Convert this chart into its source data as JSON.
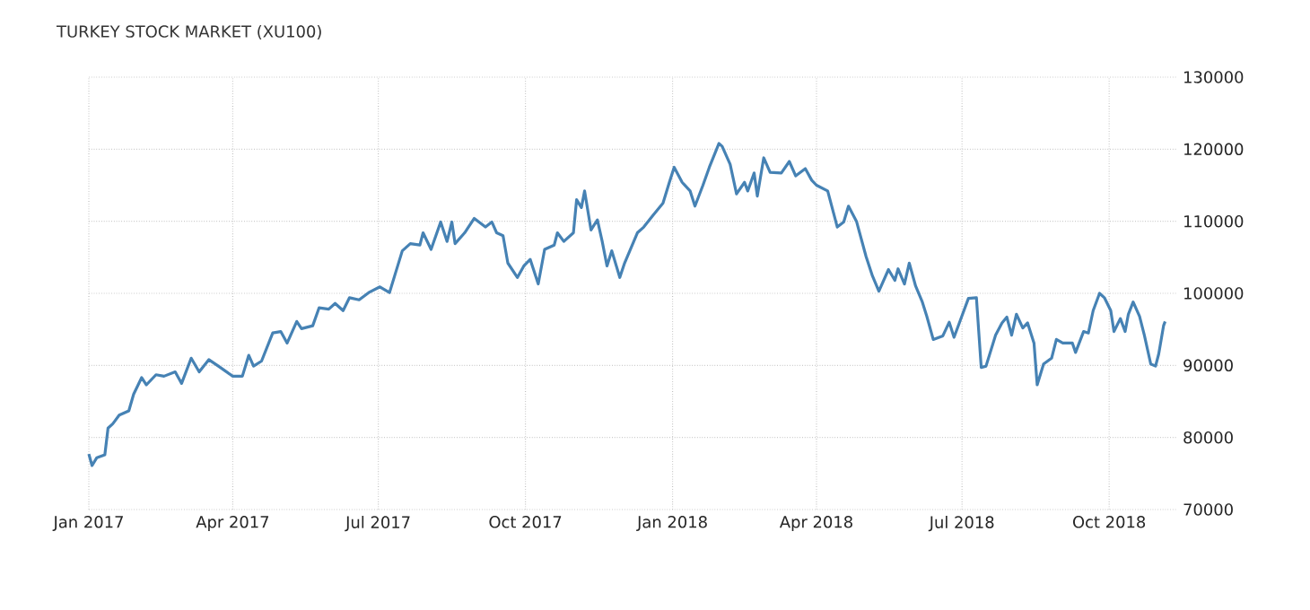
{
  "chart_data": {
    "type": "line",
    "title": "TURKEY STOCK MARKET (XU100)",
    "x": [
      "2017-01-01",
      "2017-01-03",
      "2017-01-06",
      "2017-01-11",
      "2017-01-13",
      "2017-01-16",
      "2017-01-20",
      "2017-01-26",
      "2017-01-29",
      "2017-02-03",
      "2017-02-06",
      "2017-02-12",
      "2017-02-17",
      "2017-02-24",
      "2017-02-28",
      "2017-03-06",
      "2017-03-11",
      "2017-03-17",
      "2017-03-23",
      "2017-04-01",
      "2017-04-07",
      "2017-04-11",
      "2017-04-14",
      "2017-04-19",
      "2017-04-26",
      "2017-05-01",
      "2017-05-05",
      "2017-05-11",
      "2017-05-14",
      "2017-05-21",
      "2017-05-25",
      "2017-05-31",
      "2017-06-04",
      "2017-06-09",
      "2017-06-13",
      "2017-06-19",
      "2017-06-25",
      "2017-07-02",
      "2017-07-08",
      "2017-07-12",
      "2017-07-16",
      "2017-07-21",
      "2017-07-27",
      "2017-07-29",
      "2017-08-03",
      "2017-08-09",
      "2017-08-13",
      "2017-08-16",
      "2017-08-18",
      "2017-08-24",
      "2017-08-30",
      "2017-09-06",
      "2017-09-10",
      "2017-09-13",
      "2017-09-17",
      "2017-09-20",
      "2017-09-26",
      "2017-09-30",
      "2017-10-04",
      "2017-10-09",
      "2017-10-13",
      "2017-10-19",
      "2017-10-21",
      "2017-10-25",
      "2017-10-31",
      "2017-11-02",
      "2017-11-05",
      "2017-11-07",
      "2017-11-11",
      "2017-11-15",
      "2017-11-18",
      "2017-11-21",
      "2017-11-24",
      "2017-11-29",
      "2017-12-02",
      "2017-12-10",
      "2017-12-14",
      "2017-12-20",
      "2017-12-26",
      "2017-12-30",
      "2018-01-02",
      "2018-01-07",
      "2018-01-12",
      "2018-01-15",
      "2018-01-20",
      "2018-01-24",
      "2018-01-30",
      "2018-02-01",
      "2018-02-06",
      "2018-02-10",
      "2018-02-15",
      "2018-02-17",
      "2018-02-21",
      "2018-02-23",
      "2018-02-27",
      "2018-03-03",
      "2018-03-10",
      "2018-03-15",
      "2018-03-19",
      "2018-03-25",
      "2018-03-29",
      "2018-04-01",
      "2018-04-08",
      "2018-04-14",
      "2018-04-18",
      "2018-04-21",
      "2018-04-26",
      "2018-05-02",
      "2018-05-06",
      "2018-05-10",
      "2018-05-16",
      "2018-05-20",
      "2018-05-22",
      "2018-05-26",
      "2018-05-29",
      "2018-06-02",
      "2018-06-06",
      "2018-06-09",
      "2018-06-13",
      "2018-06-19",
      "2018-06-23",
      "2018-06-26",
      "2018-06-30",
      "2018-07-05",
      "2018-07-10",
      "2018-07-13",
      "2018-07-16",
      "2018-07-22",
      "2018-07-26",
      "2018-07-29",
      "2018-08-01",
      "2018-08-04",
      "2018-08-08",
      "2018-08-11",
      "2018-08-15",
      "2018-08-17",
      "2018-08-21",
      "2018-08-26",
      "2018-08-29",
      "2018-09-02",
      "2018-09-08",
      "2018-09-10",
      "2018-09-15",
      "2018-09-18",
      "2018-09-21",
      "2018-09-25",
      "2018-09-28",
      "2018-10-02",
      "2018-10-04",
      "2018-10-08",
      "2018-10-11",
      "2018-10-13",
      "2018-10-16",
      "2018-10-20",
      "2018-10-23",
      "2018-10-27",
      "2018-10-30",
      "2018-11-01",
      "2018-11-04",
      "2018-11-05"
    ],
    "series": [
      {
        "color": "#4682b4",
        "values": [
          77700,
          76100,
          77200,
          77600,
          81300,
          81900,
          83100,
          83700,
          86000,
          88300,
          87300,
          88700,
          88500,
          89100,
          87500,
          91000,
          89100,
          90800,
          89900,
          88500,
          88500,
          91400,
          89900,
          90600,
          94500,
          94700,
          93100,
          96100,
          95100,
          95500,
          98000,
          97800,
          98600,
          97600,
          99400,
          99100,
          100100,
          100900,
          100100,
          103000,
          105900,
          106900,
          106700,
          108400,
          106100,
          109900,
          107200,
          109900,
          106900,
          108400,
          110400,
          109200,
          109900,
          108400,
          108000,
          104200,
          102200,
          103800,
          104700,
          101300,
          106100,
          106700,
          108400,
          107200,
          108400,
          113000,
          111900,
          114200,
          108800,
          110200,
          107200,
          103800,
          105900,
          102200,
          104200,
          108400,
          109200,
          110900,
          112500,
          115400,
          117500,
          115400,
          114200,
          112100,
          115000,
          117500,
          120800,
          120400,
          117900,
          113800,
          115400,
          114200,
          116700,
          113500,
          118800,
          116800,
          116700,
          118300,
          116300,
          117300,
          115700,
          115000,
          114200,
          109200,
          109900,
          112100,
          110000,
          105100,
          102400,
          100300,
          103300,
          101800,
          103400,
          101300,
          104200,
          101000,
          98900,
          96800,
          93600,
          94100,
          96000,
          93900,
          96300,
          99300,
          99400,
          89700,
          89900,
          94200,
          95900,
          96700,
          94200,
          97100,
          95200,
          95900,
          93100,
          87300,
          90200,
          91000,
          93600,
          93100,
          93100,
          91800,
          94700,
          94500,
          97600,
          100000,
          99400,
          97600,
          94700,
          96500,
          94700,
          97100,
          98800,
          96800,
          94200,
          90200,
          89900,
          91600,
          95500,
          96100
        ]
      }
    ],
    "xlim": [
      "2017-01-01",
      "2018-11-12"
    ],
    "xticks": [
      {
        "value": "2017-01-01",
        "label": "Jan 2017"
      },
      {
        "value": "2017-04-01",
        "label": "Apr 2017"
      },
      {
        "value": "2017-07-01",
        "label": "Jul 2017"
      },
      {
        "value": "2017-10-01",
        "label": "Oct 2017"
      },
      {
        "value": "2018-01-01",
        "label": "Jan 2018"
      },
      {
        "value": "2018-04-01",
        "label": "Apr 2018"
      },
      {
        "value": "2018-07-01",
        "label": "Jul 2018"
      },
      {
        "value": "2018-10-01",
        "label": "Oct 2018"
      }
    ],
    "ylim": [
      70000,
      130000
    ],
    "yticks": [
      70000,
      80000,
      90000,
      100000,
      110000,
      120000,
      130000
    ],
    "grid": true,
    "legend": false,
    "marker": "none",
    "line_style": "solid"
  }
}
